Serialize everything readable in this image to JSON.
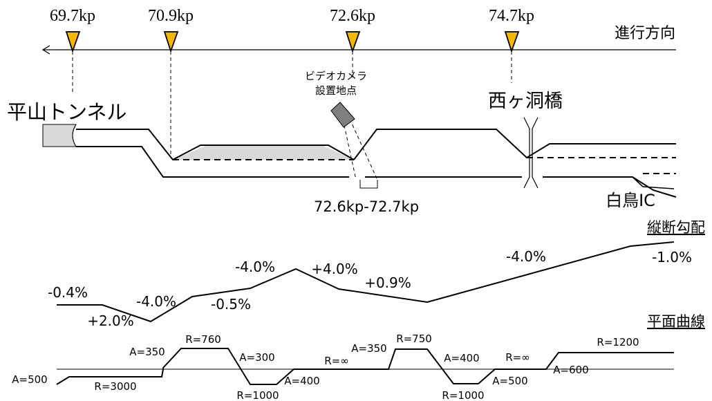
{
  "kilo_posts": [
    {
      "label": "69.7kp"
    },
    {
      "label": "70.9kp"
    },
    {
      "label": "72.6kp"
    },
    {
      "label": "74.7kp"
    }
  ],
  "direction_label": "進行方向",
  "landmarks": {
    "tunnel": "平山トンネル",
    "bridge": "西ヶ洞橋",
    "camera_line1": "ビデオカメラ",
    "camera_line2": "設置地点",
    "camera_range": "72.6kp-72.7kp",
    "interchange": "白鳥IC"
  },
  "gradient": {
    "title": "縦断勾配",
    "labels": [
      "-0.4%",
      "+2.0%",
      "-4.0%",
      "-0.5%",
      "-4.0%",
      "+4.0%",
      "+0.9%",
      "-4.0%",
      "-1.0%"
    ]
  },
  "curve": {
    "title": "平面曲線",
    "labels": [
      "A=500",
      "R=3000",
      "A=350",
      "R=760",
      "A=300",
      "R=1000",
      "A=400",
      "R=∞",
      "A=350",
      "R=750",
      "A=400",
      "R=1000",
      "R=∞",
      "A=500",
      "A=600",
      "R=1200"
    ]
  },
  "colors": {
    "marker_fill": "#f5b800",
    "marker_stroke": "#000000",
    "shade": "#d9d9d9",
    "camera": "#7f7f7f",
    "line": "#000000"
  }
}
